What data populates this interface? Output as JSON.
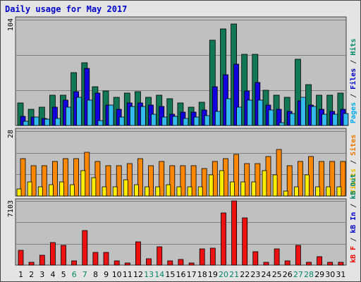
{
  "title": "Daily usage for May 2017",
  "chart_data": {
    "type": "bar",
    "days": [
      "1",
      "2",
      "3",
      "4",
      "5",
      "6",
      "7",
      "8",
      "9",
      "10",
      "11",
      "12",
      "13",
      "14",
      "15",
      "16",
      "17",
      "18",
      "19",
      "20",
      "21",
      "22",
      "23",
      "24",
      "25",
      "26",
      "27",
      "28",
      "29",
      "30",
      "31"
    ],
    "weekend_days": [
      "6",
      "7",
      "13",
      "14",
      "20",
      "21",
      "27",
      "28"
    ],
    "panels": [
      {
        "id": "traffic",
        "ymax_label": "104",
        "ymax": 104,
        "legend": [
          {
            "text": "Pages",
            "color": "#00aaee"
          },
          {
            "text": " / ",
            "color": "#333333"
          },
          {
            "text": "Files",
            "color": "#0000cc"
          },
          {
            "text": " / ",
            "color": "#333333"
          },
          {
            "text": "Hits",
            "color": "#008866"
          }
        ],
        "series": [
          {
            "name": "Hits",
            "color": "#117755",
            "values": [
              22,
              16,
              18,
              30,
              30,
              52,
              62,
              38,
              34,
              28,
              32,
              33,
              28,
              30,
              26,
              22,
              18,
              23,
              84,
              95,
              100,
              70,
              70,
              35,
              30,
              28,
              65,
              40,
              30,
              30,
              32
            ]
          },
          {
            "name": "Files",
            "color": "#1100dd",
            "values": [
              9,
              8,
              7,
              18,
              25,
              33,
              56,
              32,
              20,
              16,
              22,
              22,
              20,
              19,
              11,
              13,
              13,
              15,
              38,
              50,
              60,
              34,
              42,
              20,
              16,
              14,
              24,
              20,
              16,
              14,
              16
            ]
          },
          {
            "name": "Pages",
            "color": "#33bbee",
            "values": [
              4,
              8,
              6,
              7,
              18,
              28,
              25,
              5,
              20,
              8,
              19,
              19,
              11,
              8,
              9,
              7,
              8,
              10,
              14,
              26,
              18,
              25,
              25,
              15,
              3,
              12,
              28,
              19,
              11,
              11,
              12
            ]
          }
        ]
      },
      {
        "id": "visits",
        "ymax_label": "28",
        "ymax": 28,
        "legend": [
          {
            "text": "Visits",
            "color": "#eebb00"
          },
          {
            "text": " / ",
            "color": "#333333"
          },
          {
            "text": "Sites",
            "color": "#ee7700"
          }
        ],
        "series": [
          {
            "name": "Sites",
            "color": "#ff8800",
            "values": [
              16,
              13,
              13,
              15,
              16,
              16,
              19,
              15,
              13,
              13,
              14,
              16,
              13,
              15,
              13,
              13,
              13,
              12,
              15,
              16,
              18,
              14,
              14,
              17,
              20,
              13,
              15,
              17,
              15,
              15,
              15
            ]
          },
          {
            "name": "Visits",
            "color": "#ffee00",
            "values": [
              3,
              6,
              4,
              5,
              6,
              5,
              11,
              8,
              4,
              4,
              7,
              5,
              4,
              4,
              5,
              4,
              4,
              4,
              9,
              11,
              6,
              6,
              6,
              11,
              9,
              2,
              4,
              9,
              4,
              4,
              4
            ]
          }
        ]
      },
      {
        "id": "kbytes",
        "ymax_label": "7103",
        "ymax": 7103,
        "legend": [
          {
            "text": "kB F",
            "color": "#ee0000"
          },
          {
            "text": " / ",
            "color": "#333333"
          },
          {
            "text": "kB In",
            "color": "#0000cc"
          },
          {
            "text": " / ",
            "color": "#333333"
          },
          {
            "text": "kB Out",
            "color": "#008866"
          }
        ],
        "series": [
          {
            "name": "kB F",
            "color": "#ee1111",
            "values": [
              1650,
              300,
              1100,
              2500,
              2200,
              500,
              3800,
              1400,
              1400,
              500,
              200,
              2600,
              700,
              2000,
              500,
              600,
              200,
              1800,
              1900,
              5800,
              7100,
              5200,
              1500,
              300,
              1800,
              500,
              2200,
              300,
              900,
              300,
              300
            ]
          }
        ]
      }
    ]
  }
}
